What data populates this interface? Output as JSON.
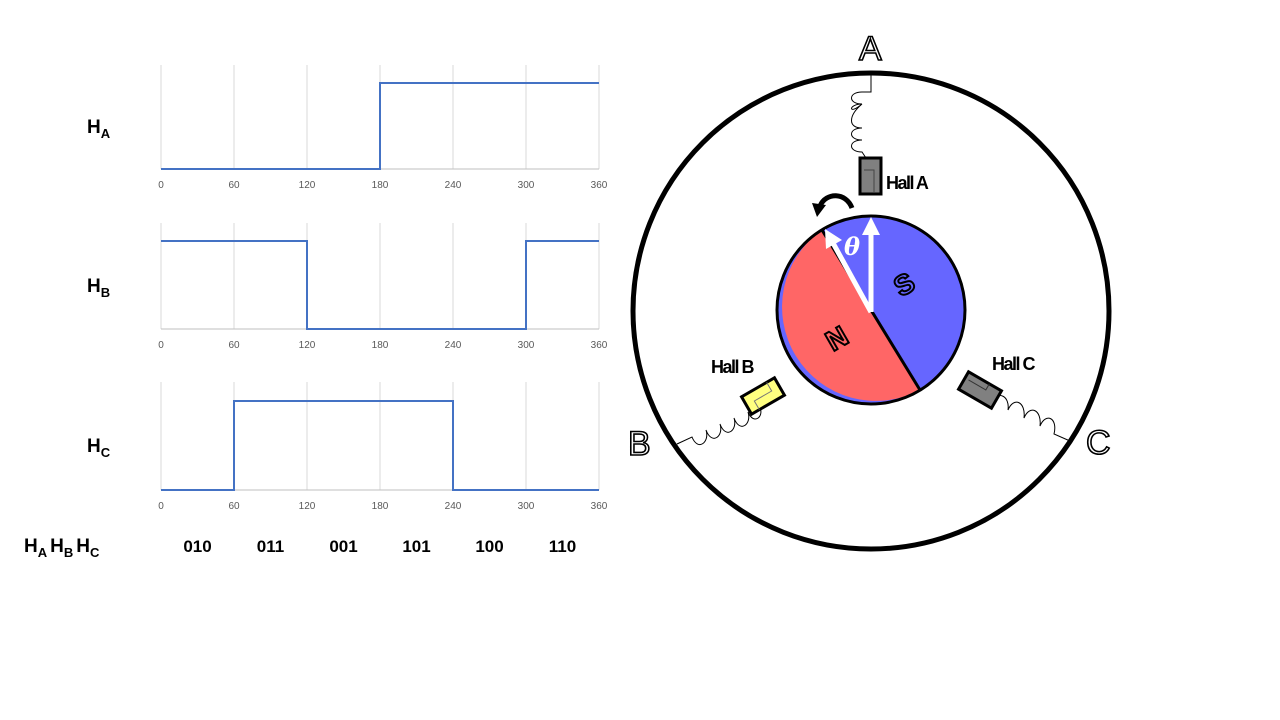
{
  "chart_data": [
    {
      "type": "line",
      "step": true,
      "label_main": "H",
      "label_sub": "A",
      "x_ticks": [
        "0",
        "60",
        "120",
        "180",
        "240",
        "300",
        "360"
      ],
      "xlim": [
        0,
        360
      ],
      "ylim": [
        0,
        1
      ],
      "grid": "vertical",
      "x": [
        0,
        180,
        180,
        360
      ],
      "y": [
        0,
        0,
        1,
        1
      ],
      "color": "#4472C4"
    },
    {
      "type": "line",
      "step": true,
      "label_main": "H",
      "label_sub": "B",
      "x_ticks": [
        "0",
        "60",
        "120",
        "180",
        "240",
        "300",
        "360"
      ],
      "xlim": [
        0,
        360
      ],
      "ylim": [
        0,
        1
      ],
      "grid": "vertical",
      "x": [
        0,
        120,
        120,
        300,
        300,
        360
      ],
      "y": [
        1,
        1,
        0,
        0,
        1,
        1
      ],
      "color": "#4472C4"
    },
    {
      "type": "line",
      "step": true,
      "label_main": "H",
      "label_sub": "C",
      "x_ticks": [
        "0",
        "60",
        "120",
        "180",
        "240",
        "300",
        "360"
      ],
      "xlim": [
        0,
        360
      ],
      "ylim": [
        0,
        1
      ],
      "grid": "vertical",
      "x": [
        0,
        60,
        60,
        240,
        240,
        360
      ],
      "y": [
        0,
        0,
        1,
        1,
        0,
        0
      ],
      "color": "#4472C4"
    }
  ],
  "codes": {
    "header": [
      {
        "main": "H",
        "sub": "A"
      },
      {
        "main": "H",
        "sub": "B"
      },
      {
        "main": "H",
        "sub": "C"
      }
    ],
    "values": [
      "010",
      "011",
      "001",
      "101",
      "100",
      "110"
    ]
  },
  "motor": {
    "phases": [
      "A",
      "B",
      "C"
    ],
    "halls": [
      "Hall A",
      "Hall B",
      "Hall C"
    ],
    "poles": {
      "north": "N",
      "south": "S"
    },
    "angle_label": "θ",
    "colors": {
      "north": "#FF6666",
      "south": "#6666FF",
      "hall_a": "#808080",
      "hall_b": "#FFFF80",
      "hall_c": "#808080"
    },
    "icons": {
      "rotation": "curved-arrow-ccw-icon"
    }
  }
}
